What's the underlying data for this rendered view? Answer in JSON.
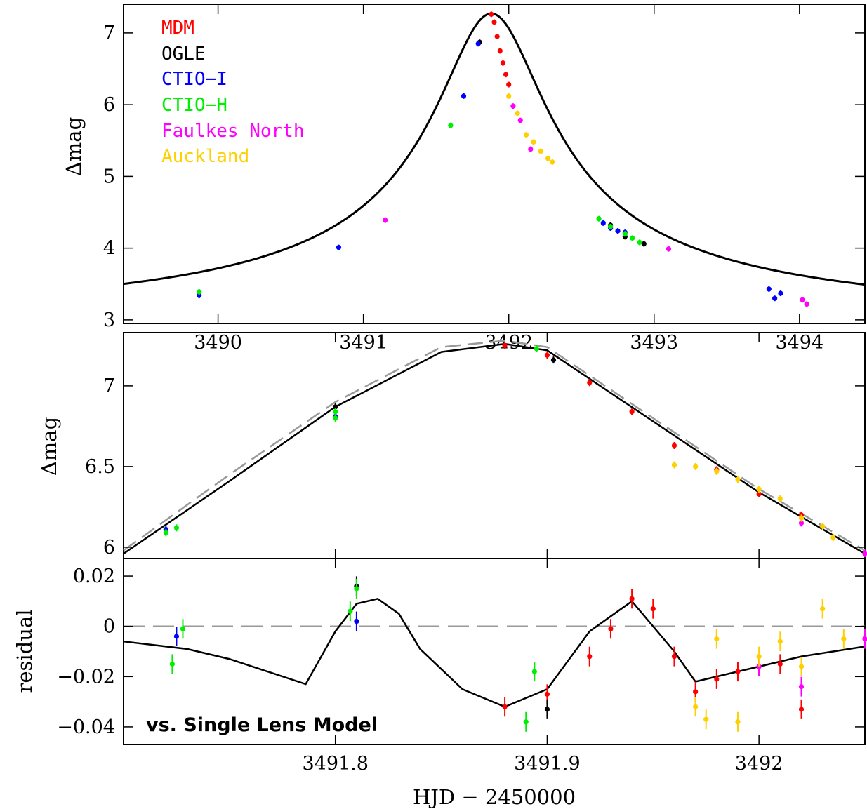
{
  "chart_data": [
    {
      "id": "top",
      "type": "line",
      "ylabel": "Δmag",
      "xlim": [
        3489.35,
        3494.45
      ],
      "ylim": [
        2.95,
        7.4
      ],
      "x_ticks": [
        3490,
        3491,
        3492,
        3493,
        3494
      ],
      "y_ticks": [
        3,
        4,
        5,
        6,
        7
      ],
      "legend": {
        "placement": "top-left",
        "entries": [
          {
            "name": "MDM",
            "color": "#ff0000"
          },
          {
            "name": "OGLE",
            "color": "#000000"
          },
          {
            "name": "CTIO−I",
            "color": "#0000ff"
          },
          {
            "name": "CTIO−H",
            "color": "#00ee00"
          },
          {
            "name": "Faulkes North",
            "color": "#ff00ff"
          },
          {
            "name": "Auckland",
            "color": "#ffd000"
          }
        ]
      },
      "model": {
        "t0": 3491.88,
        "peak": 7.27,
        "amp": 4.17,
        "tau": 1.6
      },
      "series": [
        {
          "color": "#ff0000",
          "x": [
            3491.88,
            3491.9,
            3491.92,
            3491.94,
            3491.96,
            3491.98,
            3492.0
          ],
          "y": [
            7.26,
            7.15,
            6.95,
            6.75,
            6.58,
            6.42,
            6.28
          ]
        },
        {
          "color": "#000000",
          "x": [
            3491.8,
            3492.7,
            3492.8,
            3492.93
          ],
          "y": [
            6.87,
            4.32,
            4.16,
            4.06
          ]
        },
        {
          "color": "#0000ff",
          "x": [
            3489.87,
            3490.83,
            3491.69,
            3491.79,
            3492.65,
            3492.7,
            3492.75,
            3492.8,
            3493.79,
            3493.83,
            3493.87
          ],
          "y": [
            3.34,
            4.01,
            6.12,
            6.85,
            4.35,
            4.28,
            4.24,
            4.22,
            3.43,
            3.3,
            3.37
          ]
        },
        {
          "color": "#00ee00",
          "x": [
            3489.87,
            3491.6,
            3492.62,
            3492.7,
            3492.8,
            3492.85,
            3492.9
          ],
          "y": [
            3.39,
            5.71,
            4.41,
            4.3,
            4.2,
            4.14,
            4.08
          ]
        },
        {
          "color": "#ff00ff",
          "x": [
            3491.15,
            3492.03,
            3492.08,
            3492.15,
            3493.1,
            3494.02,
            3494.05
          ],
          "y": [
            4.39,
            5.98,
            5.78,
            5.38,
            3.99,
            3.28,
            3.22
          ]
        },
        {
          "color": "#ffd000",
          "x": [
            3492.0,
            3492.06,
            3492.12,
            3492.17,
            3492.22,
            3492.27,
            3492.3
          ],
          "y": [
            6.12,
            5.88,
            5.58,
            5.48,
            5.35,
            5.25,
            5.2
          ]
        }
      ]
    },
    {
      "id": "middle",
      "type": "line",
      "ylabel": "Δmag",
      "xlim": [
        3491.7,
        3492.05
      ],
      "ylim": [
        5.93,
        7.33
      ],
      "y_ticks": [
        6,
        6.5,
        7
      ],
      "model_solid": {
        "x": [
          3491.7,
          3491.75,
          3491.8,
          3491.85,
          3491.88,
          3491.9,
          3491.95,
          3492.0,
          3492.05
        ],
        "y": [
          5.96,
          6.41,
          6.87,
          7.21,
          7.26,
          7.22,
          6.78,
          6.34,
          5.96
        ]
      },
      "model_dashed": {
        "x": [
          3491.7,
          3491.75,
          3491.8,
          3491.85,
          3491.88,
          3491.9,
          3491.95,
          3492.0,
          3492.05
        ],
        "y": [
          5.98,
          6.45,
          6.9,
          7.24,
          7.28,
          7.24,
          6.8,
          6.36,
          5.98
        ]
      },
      "series": [
        {
          "color": "#ff0000",
          "x": [
            3491.88,
            3491.9,
            3491.92,
            3491.94,
            3491.96,
            3491.98,
            3492.0,
            3492.02
          ],
          "y": [
            7.25,
            7.19,
            7.02,
            6.84,
            6.63,
            6.48,
            6.33,
            6.2
          ]
        },
        {
          "color": "#000000",
          "x": [
            3491.8,
            3491.903
          ],
          "y": [
            6.87,
            7.16
          ]
        },
        {
          "color": "#0000ff",
          "x": [
            3491.72,
            3491.8
          ],
          "y": [
            6.11,
            6.81
          ]
        },
        {
          "color": "#00ee00",
          "x": [
            3491.72,
            3491.725,
            3491.8,
            3491.8,
            3491.895
          ],
          "y": [
            6.09,
            6.12,
            6.8,
            6.84,
            7.23
          ]
        },
        {
          "color": "#ff00ff",
          "x": [
            3492.02,
            3492.05
          ],
          "y": [
            6.15,
            5.96
          ]
        },
        {
          "color": "#ffd000",
          "x": [
            3491.96,
            3491.97,
            3491.98,
            3491.99,
            3492.0,
            3492.01,
            3492.02,
            3492.03,
            3492.035
          ],
          "y": [
            6.51,
            6.5,
            6.47,
            6.42,
            6.36,
            6.3,
            6.18,
            6.13,
            6.06
          ]
        }
      ]
    },
    {
      "id": "bottom",
      "type": "line",
      "xlabel": "HJD − 2450000",
      "ylabel": "residual",
      "annotation": "vs. Single Lens Model",
      "xlim": [
        3491.7,
        3492.05
      ],
      "ylim": [
        -0.047,
        0.027
      ],
      "x_ticks": [
        3491.8,
        3491.9,
        3492
      ],
      "y_ticks": [
        -0.04,
        -0.02,
        0,
        0.02
      ],
      "model_solid": {
        "x": [
          3491.7,
          3491.73,
          3491.75,
          3491.786,
          3491.8,
          3491.81,
          3491.82,
          3491.83,
          3491.84,
          3491.86,
          3491.88,
          3491.9,
          3491.92,
          3491.94,
          3491.96,
          3491.97,
          3492.0,
          3492.02,
          3492.05
        ],
        "y": [
          -0.006,
          -0.009,
          -0.013,
          -0.023,
          -0.002,
          0.009,
          0.011,
          0.005,
          -0.009,
          -0.025,
          -0.032,
          -0.025,
          -0.002,
          0.01,
          -0.01,
          -0.022,
          -0.016,
          -0.012,
          -0.008
        ]
      },
      "series": [
        {
          "color": "#ff0000",
          "x": [
            3491.88,
            3491.9,
            3491.92,
            3491.93,
            3491.94,
            3491.95,
            3491.96,
            3491.97,
            3491.98,
            3491.99,
            3492.0,
            3492.01,
            3492.02
          ],
          "y": [
            -0.032,
            -0.027,
            -0.012,
            -0.001,
            0.011,
            0.007,
            -0.012,
            -0.026,
            -0.021,
            -0.018,
            -0.016,
            -0.015,
            -0.033
          ]
        },
        {
          "color": "#000000",
          "x": [
            3491.81,
            3491.9
          ],
          "y": [
            0.016,
            -0.033
          ]
        },
        {
          "color": "#0000ff",
          "x": [
            3491.725,
            3491.81
          ],
          "y": [
            -0.004,
            0.002
          ]
        },
        {
          "color": "#00ee00",
          "x": [
            3491.723,
            3491.728,
            3491.807,
            3491.81,
            3491.89,
            3491.894
          ],
          "y": [
            -0.015,
            -0.001,
            0.006,
            0.015,
            -0.038,
            -0.018
          ]
        },
        {
          "color": "#ff00ff",
          "x": [
            3492.0,
            3492.02,
            3492.05
          ],
          "y": [
            -0.016,
            -0.024,
            -0.005
          ]
        },
        {
          "color": "#ffd000",
          "x": [
            3491.97,
            3491.975,
            3491.98,
            3491.99,
            3492.0,
            3492.01,
            3492.02,
            3492.03,
            3492.04
          ],
          "y": [
            -0.032,
            -0.037,
            -0.005,
            -0.038,
            -0.012,
            -0.006,
            -0.016,
            0.007,
            -0.005
          ]
        }
      ]
    }
  ]
}
